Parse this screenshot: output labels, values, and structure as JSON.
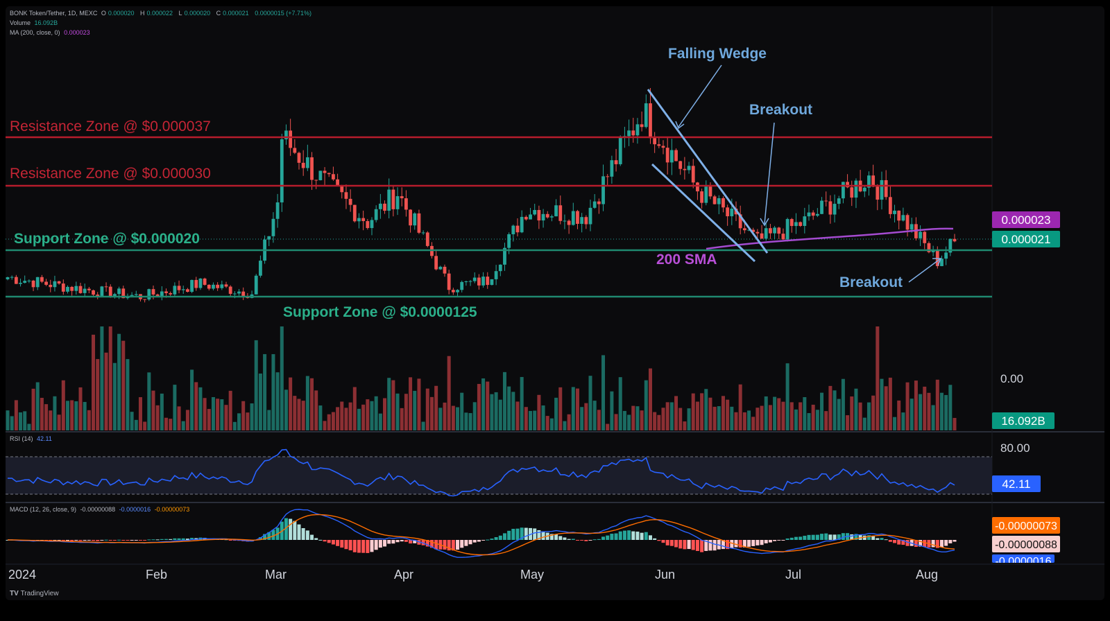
{
  "header": {
    "symbol": "BONK Token/Tether, 1D, MEXC",
    "o_label": "O",
    "o": "0.000020",
    "h_label": "H",
    "h": "0.000022",
    "l_label": "L",
    "l": "0.000020",
    "c_label": "C",
    "c": "0.000021",
    "change": "0.0000015 (+7.71%)",
    "volume_label": "Volume",
    "volume": "16.092B",
    "ma_label": "MA (200, close, 0)",
    "ma": "0.000023",
    "rsi_label": "RSI (14)",
    "rsi": "42.11",
    "macd_label": "MACD (12, 26, close, 9)",
    "macd_1": "-0.00000088",
    "macd_2": "-0.0000016",
    "macd_3": "-0.00000073"
  },
  "colors": {
    "up": "#26a69a",
    "down": "#ef5350",
    "resistance": "#b71c2c",
    "support": "#1f8a70",
    "sma": "#a44bd0",
    "annotation": "#6fa8dc",
    "rsi": "#2962ff",
    "macd": "#2962ff",
    "signal": "#ff6d00"
  },
  "annotations": {
    "res1": "Resistance Zone @ $0.000037",
    "res2": "Resistance Zone @ $0.000030",
    "sup1": "Support Zone @ $0.000020",
    "sup2": "Support Zone @ $0.0000125",
    "wedge": "Falling Wedge",
    "breakout1": "Breakout",
    "breakout2": "Breakout",
    "sma": "200 SMA"
  },
  "price_badges": {
    "ma": "0.000023",
    "last": "0.000021"
  },
  "volume_axis": {
    "tick": "0.00",
    "badge": "16.092B"
  },
  "rsi_axis": {
    "tick": "80.00",
    "badge": "42.11"
  },
  "macd_axis": {
    "badge1": "-0.00000073",
    "badge2": "-0.00000088",
    "badge3": "-0.0000016"
  },
  "time_axis": [
    "2024",
    "Feb",
    "Mar",
    "Apr",
    "May",
    "Jun",
    "Jul",
    "Aug"
  ],
  "branding": "TradingView",
  "chart_data": {
    "type": "candlestick",
    "x_start": "2024-01-01",
    "x_end": "2024-08-09",
    "levels": {
      "resistance": [
        3.7e-05,
        3e-05
      ],
      "support": [
        2e-05,
        1.25e-05
      ]
    },
    "close_approx": [
      {
        "date": "2024-01-01",
        "close": 1.55e-05
      },
      {
        "date": "2024-01-10",
        "close": 1.45e-05
      },
      {
        "date": "2024-01-20",
        "close": 1.35e-05
      },
      {
        "date": "2024-02-01",
        "close": 1.25e-05
      },
      {
        "date": "2024-02-15",
        "close": 1.45e-05
      },
      {
        "date": "2024-02-27",
        "close": 1.3e-05
      },
      {
        "date": "2024-03-04",
        "close": 2.7e-05
      },
      {
        "date": "2024-03-05",
        "close": 3.7e-05
      },
      {
        "date": "2024-03-15",
        "close": 3e-05
      },
      {
        "date": "2024-03-25",
        "close": 2.4e-05
      },
      {
        "date": "2024-04-01",
        "close": 2.85e-05
      },
      {
        "date": "2024-04-13",
        "close": 1.4e-05
      },
      {
        "date": "2024-04-22",
        "close": 1.5e-05
      },
      {
        "date": "2024-05-01",
        "close": 2.6e-05
      },
      {
        "date": "2024-05-15",
        "close": 2.5e-05
      },
      {
        "date": "2024-05-28",
        "close": 4.1e-05
      },
      {
        "date": "2024-06-10",
        "close": 2.9e-05
      },
      {
        "date": "2024-06-24",
        "close": 2.1e-05
      },
      {
        "date": "2024-07-05",
        "close": 2.4e-05
      },
      {
        "date": "2024-07-20",
        "close": 3.1e-05
      },
      {
        "date": "2024-08-05",
        "close": 1.8e-05
      },
      {
        "date": "2024-08-09",
        "close": 2.1e-05
      }
    ],
    "sma200_last": 2.3e-05,
    "volume_last": "16.092B",
    "rsi_last": 42.11,
    "macd_last": {
      "macd": -8.8e-07,
      "signal": -1.6e-06,
      "histogram": -7.3e-07
    }
  }
}
